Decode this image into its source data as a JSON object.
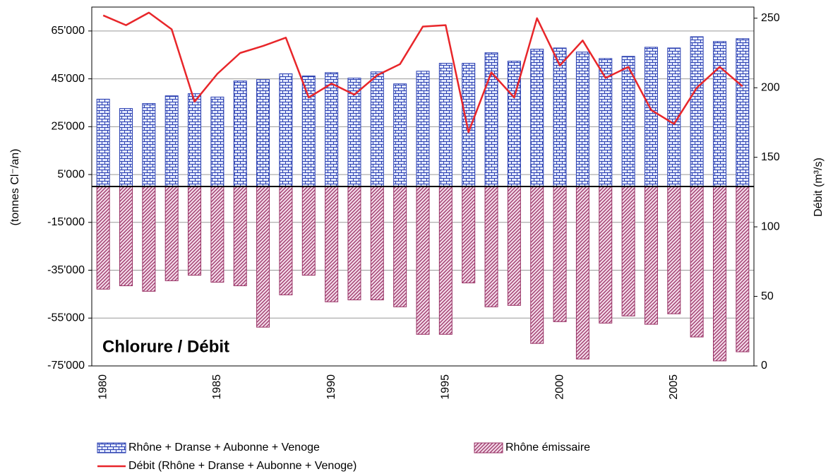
{
  "chart_data": {
    "type": "bar",
    "annotation": "Chlorure / Débit",
    "y_label": "(tonnes Cl⁻/an)",
    "y2_label": "Débit (m³/s)",
    "categories": [
      "1980",
      null,
      null,
      null,
      null,
      "1985",
      null,
      null,
      null,
      null,
      "1990",
      null,
      null,
      null,
      null,
      "1995",
      null,
      null,
      null,
      null,
      "2000",
      null,
      null,
      null,
      null,
      "2005",
      null,
      null,
      null
    ],
    "series": [
      {
        "name": "Rhône + Dranse + Aubonne + Venoge",
        "type": "bar",
        "color": "#2a3fb0",
        "values": [
          36500,
          32600,
          34700,
          37900,
          38800,
          37400,
          44100,
          44700,
          47100,
          46200,
          47600,
          45300,
          47900,
          42900,
          48200,
          51500,
          51500,
          55900,
          52400,
          57400,
          57900,
          56200,
          53500,
          54400,
          58200,
          57900,
          62600,
          60600,
          61800
        ]
      },
      {
        "name": "Rhône émissaire",
        "type": "bar",
        "color": "#993366",
        "values": [
          -42900,
          -41500,
          -43800,
          -39400,
          -37100,
          -40000,
          -41500,
          -58800,
          -45300,
          -37100,
          -48200,
          -47400,
          -47400,
          -50300,
          -61800,
          -61800,
          -40300,
          -50300,
          -49700,
          -65600,
          -56500,
          -72100,
          -57100,
          -54100,
          -57600,
          -53200,
          -62900,
          -72900,
          -69100
        ]
      },
      {
        "name": "Débit (Rhône + Dranse + Aubonne + Venoge)",
        "type": "line",
        "axis": "y2",
        "color": "#e8262a",
        "values": [
          252,
          245,
          254,
          242,
          190,
          210,
          225,
          230,
          236,
          193,
          203,
          195,
          209,
          217,
          244,
          245,
          168,
          211,
          193,
          250,
          216,
          234,
          207,
          215,
          184,
          174,
          200,
          215,
          201
        ]
      }
    ],
    "ylim": [
      -75000,
      75000
    ],
    "yticks": [
      {
        "value": 65000,
        "label": "65'000"
      },
      {
        "value": 45000,
        "label": "45'000"
      },
      {
        "value": 25000,
        "label": "25'000"
      },
      {
        "value": 5000,
        "label": "5'000"
      },
      {
        "value": -15000,
        "label": "-15'000"
      },
      {
        "value": -35000,
        "label": "-35'000"
      },
      {
        "value": -55000,
        "label": "-55'000"
      },
      {
        "value": -75000,
        "label": "-75'000"
      }
    ],
    "y2lim": [
      0,
      258
    ],
    "y2ticks": [
      0,
      50,
      100,
      150,
      200,
      250
    ],
    "grid": true,
    "legend": "bottom"
  }
}
